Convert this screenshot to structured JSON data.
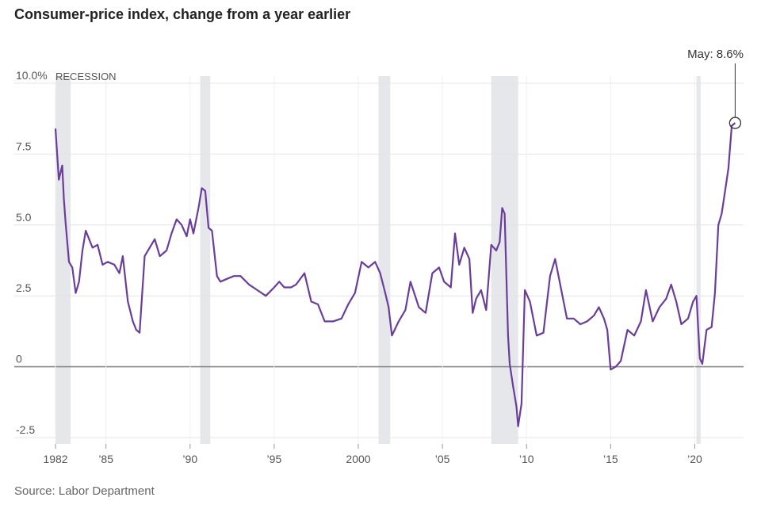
{
  "page": {
    "title": "Consumer-price index, change from a year earlier",
    "source": "Source: Labor Department"
  },
  "chart_data": {
    "type": "line",
    "title": "Consumer-price index, change from a year earlier",
    "xlabel": "",
    "ylabel": "",
    "xlim": [
      1982,
      2022.9
    ],
    "ylim": [
      -2.5,
      10
    ],
    "y_ticks": [
      {
        "value": -2.5,
        "label": "-2.5"
      },
      {
        "value": 0,
        "label": "0"
      },
      {
        "value": 2.5,
        "label": "2.5"
      },
      {
        "value": 5.0,
        "label": "5.0"
      },
      {
        "value": 7.5,
        "label": "7.5"
      },
      {
        "value": 10.0,
        "label": "10.0%"
      }
    ],
    "x_ticks": [
      {
        "value": 1982,
        "label": "1982"
      },
      {
        "value": 1985,
        "label": "’85"
      },
      {
        "value": 1990,
        "label": "’90"
      },
      {
        "value": 1995,
        "label": "’95"
      },
      {
        "value": 2000,
        "label": "2000"
      },
      {
        "value": 2005,
        "label": "’05"
      },
      {
        "value": 2010,
        "label": "’10"
      },
      {
        "value": 2015,
        "label": "’15"
      },
      {
        "value": 2020,
        "label": "’20"
      }
    ],
    "grid": true,
    "recession_label": "RECESSION",
    "recessions": [
      [
        1982.0,
        1982.9
      ],
      [
        1990.6,
        1991.2
      ],
      [
        2001.2,
        2001.9
      ],
      [
        2007.9,
        2009.5
      ],
      [
        2020.1,
        2020.35
      ]
    ],
    "colors": {
      "line": "#6a3d9a",
      "recession": "#e6e7ea",
      "grid": "#e4e4e4",
      "zero": "#888888"
    },
    "annotation": {
      "text": "May: 8.6%",
      "x": 2022.4,
      "y": 8.6
    },
    "series": [
      {
        "x": [
          1982.0,
          1982.2,
          1982.4,
          1982.5,
          1982.6,
          1982.8,
          1983.0,
          1983.2,
          1983.4,
          1983.6,
          1983.8,
          1984.0,
          1984.2,
          1984.5,
          1984.8,
          1985.1,
          1985.5,
          1985.8,
          1986.0,
          1986.3,
          1986.6,
          1986.8,
          1987.0,
          1987.3,
          1987.6,
          1987.9,
          1988.2,
          1988.6,
          1988.9,
          1989.2,
          1989.5,
          1989.8,
          1990.0,
          1990.2,
          1990.5,
          1990.7,
          1990.9,
          1991.1,
          1991.3,
          1991.6,
          1991.8,
          1992.2,
          1992.6,
          1993.0,
          1993.5,
          1994.0,
          1994.5,
          1995.0,
          1995.3,
          1995.6,
          1996.0,
          1996.3,
          1996.8,
          1997.2,
          1997.6,
          1998.0,
          1998.5,
          1999.0,
          1999.4,
          1999.8,
          2000.2,
          2000.6,
          2001.0,
          2001.3,
          2001.6,
          2001.8,
          2002.0,
          2002.4,
          2002.8,
          2003.1,
          2003.6,
          2004.0,
          2004.4,
          2004.8,
          2005.1,
          2005.5,
          2005.75,
          2006.0,
          2006.3,
          2006.6,
          2006.8,
          2007.0,
          2007.3,
          2007.6,
          2007.9,
          2008.2,
          2008.4,
          2008.55,
          2008.7,
          2008.9,
          2009.0,
          2009.2,
          2009.4,
          2009.5,
          2009.7,
          2009.9,
          2010.2,
          2010.6,
          2011.0,
          2011.4,
          2011.7,
          2012.0,
          2012.4,
          2012.8,
          2013.2,
          2013.6,
          2014.0,
          2014.3,
          2014.6,
          2014.8,
          2015.0,
          2015.3,
          2015.6,
          2016.0,
          2016.4,
          2016.8,
          2017.1,
          2017.5,
          2017.9,
          2018.3,
          2018.6,
          2018.9,
          2019.2,
          2019.6,
          2019.9,
          2020.1,
          2020.3,
          2020.45,
          2020.7,
          2021.0,
          2021.2,
          2021.4,
          2021.6,
          2021.8,
          2022.0,
          2022.2,
          2022.4
        ],
        "y": [
          8.4,
          6.6,
          7.1,
          5.9,
          5.1,
          3.7,
          3.5,
          2.6,
          3.0,
          4.1,
          4.8,
          4.5,
          4.2,
          4.3,
          3.6,
          3.7,
          3.6,
          3.3,
          3.9,
          2.3,
          1.6,
          1.3,
          1.2,
          3.9,
          4.2,
          4.5,
          3.9,
          4.1,
          4.7,
          5.2,
          5.0,
          4.6,
          5.2,
          4.7,
          5.6,
          6.3,
          6.2,
          4.9,
          4.8,
          3.2,
          3.0,
          3.1,
          3.2,
          3.2,
          2.9,
          2.7,
          2.5,
          2.8,
          3.0,
          2.8,
          2.8,
          2.9,
          3.3,
          2.3,
          2.2,
          1.6,
          1.6,
          1.7,
          2.2,
          2.6,
          3.7,
          3.5,
          3.7,
          3.3,
          2.6,
          2.1,
          1.1,
          1.6,
          2.0,
          3.0,
          2.1,
          1.9,
          3.3,
          3.5,
          3.0,
          2.8,
          4.7,
          3.6,
          4.2,
          3.8,
          1.9,
          2.4,
          2.7,
          2.0,
          4.3,
          4.1,
          4.4,
          5.6,
          5.4,
          1.1,
          0.1,
          -0.7,
          -1.4,
          -2.1,
          -1.3,
          2.7,
          2.3,
          1.1,
          1.2,
          3.2,
          3.8,
          2.9,
          1.7,
          1.7,
          1.5,
          1.6,
          1.8,
          2.1,
          1.7,
          1.3,
          -0.1,
          0.0,
          0.2,
          1.3,
          1.1,
          1.6,
          2.7,
          1.6,
          2.1,
          2.4,
          2.9,
          2.3,
          1.5,
          1.7,
          2.3,
          2.5,
          0.3,
          0.1,
          1.3,
          1.4,
          2.6,
          5.0,
          5.4,
          6.2,
          7.0,
          8.5,
          8.6
        ]
      }
    ]
  }
}
